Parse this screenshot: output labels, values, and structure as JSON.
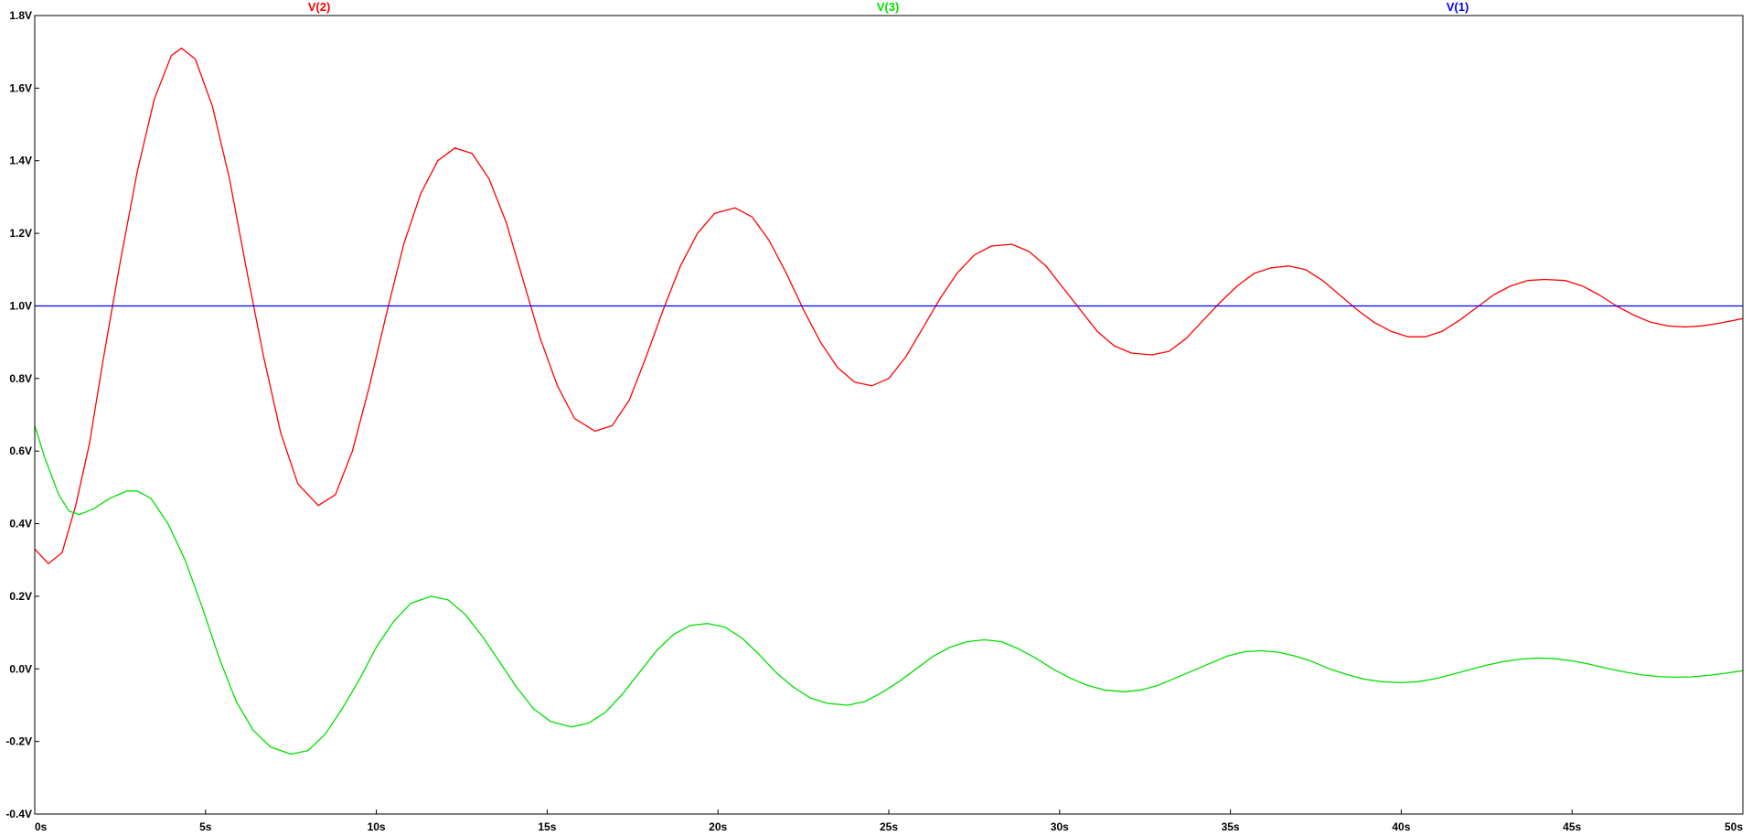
{
  "chart_data": {
    "type": "line",
    "title": "",
    "xlabel": "",
    "ylabel": "",
    "xlim": [
      0,
      50
    ],
    "ylim": [
      -0.4,
      1.8
    ],
    "grid": false,
    "legend_position": "top",
    "x_ticks": [
      {
        "value": 0,
        "label": "0s"
      },
      {
        "value": 5,
        "label": "5s"
      },
      {
        "value": 10,
        "label": "10s"
      },
      {
        "value": 15,
        "label": "15s"
      },
      {
        "value": 20,
        "label": "20s"
      },
      {
        "value": 25,
        "label": "25s"
      },
      {
        "value": 30,
        "label": "30s"
      },
      {
        "value": 35,
        "label": "35s"
      },
      {
        "value": 40,
        "label": "40s"
      },
      {
        "value": 45,
        "label": "45s"
      },
      {
        "value": 50,
        "label": "50s"
      }
    ],
    "y_ticks": [
      {
        "value": 1.8,
        "label": "1.8V"
      },
      {
        "value": 1.6,
        "label": "1.6V"
      },
      {
        "value": 1.4,
        "label": "1.4V"
      },
      {
        "value": 1.2,
        "label": "1.2V"
      },
      {
        "value": 1.0,
        "label": "1.0V"
      },
      {
        "value": 0.8,
        "label": "0.8V"
      },
      {
        "value": 0.6,
        "label": "0.6V"
      },
      {
        "value": 0.4,
        "label": "0.4V"
      },
      {
        "value": 0.2,
        "label": "0.2V"
      },
      {
        "value": 0.0,
        "label": "0.0V"
      },
      {
        "value": -0.2,
        "label": "-0.2V"
      },
      {
        "value": -0.4,
        "label": "-0.4V"
      }
    ],
    "series": [
      {
        "name": "V(2)",
        "color": "#ff0000",
        "points": [
          [
            0,
            0.33
          ],
          [
            0.4,
            0.29
          ],
          [
            0.8,
            0.32
          ],
          [
            1.2,
            0.45
          ],
          [
            1.6,
            0.62
          ],
          [
            2.0,
            0.85
          ],
          [
            2.5,
            1.12
          ],
          [
            3.0,
            1.37
          ],
          [
            3.5,
            1.57
          ],
          [
            4.0,
            1.69
          ],
          [
            4.3,
            1.71
          ],
          [
            4.7,
            1.68
          ],
          [
            5.2,
            1.55
          ],
          [
            5.7,
            1.35
          ],
          [
            6.2,
            1.1
          ],
          [
            6.7,
            0.86
          ],
          [
            7.2,
            0.65
          ],
          [
            7.7,
            0.51
          ],
          [
            8.3,
            0.45
          ],
          [
            8.8,
            0.48
          ],
          [
            9.3,
            0.6
          ],
          [
            9.8,
            0.78
          ],
          [
            10.3,
            0.98
          ],
          [
            10.8,
            1.17
          ],
          [
            11.3,
            1.31
          ],
          [
            11.8,
            1.4
          ],
          [
            12.3,
            1.435
          ],
          [
            12.8,
            1.42
          ],
          [
            13.3,
            1.35
          ],
          [
            13.8,
            1.23
          ],
          [
            14.3,
            1.07
          ],
          [
            14.8,
            0.91
          ],
          [
            15.3,
            0.78
          ],
          [
            15.8,
            0.69
          ],
          [
            16.4,
            0.655
          ],
          [
            16.9,
            0.67
          ],
          [
            17.4,
            0.74
          ],
          [
            17.9,
            0.86
          ],
          [
            18.4,
            0.99
          ],
          [
            18.9,
            1.11
          ],
          [
            19.4,
            1.2
          ],
          [
            19.9,
            1.255
          ],
          [
            20.5,
            1.27
          ],
          [
            21.0,
            1.245
          ],
          [
            21.5,
            1.18
          ],
          [
            22.0,
            1.09
          ],
          [
            22.5,
            0.99
          ],
          [
            23.0,
            0.9
          ],
          [
            23.5,
            0.83
          ],
          [
            24.0,
            0.79
          ],
          [
            24.5,
            0.78
          ],
          [
            25.0,
            0.8
          ],
          [
            25.5,
            0.86
          ],
          [
            26.0,
            0.94
          ],
          [
            26.5,
            1.02
          ],
          [
            27.0,
            1.09
          ],
          [
            27.5,
            1.14
          ],
          [
            28.0,
            1.165
          ],
          [
            28.6,
            1.17
          ],
          [
            29.1,
            1.15
          ],
          [
            29.6,
            1.11
          ],
          [
            30.1,
            1.05
          ],
          [
            30.6,
            0.99
          ],
          [
            31.1,
            0.93
          ],
          [
            31.6,
            0.89
          ],
          [
            32.1,
            0.87
          ],
          [
            32.7,
            0.865
          ],
          [
            33.2,
            0.875
          ],
          [
            33.7,
            0.91
          ],
          [
            34.2,
            0.96
          ],
          [
            34.7,
            1.01
          ],
          [
            35.2,
            1.055
          ],
          [
            35.7,
            1.09
          ],
          [
            36.2,
            1.105
          ],
          [
            36.7,
            1.11
          ],
          [
            37.2,
            1.1
          ],
          [
            37.7,
            1.07
          ],
          [
            38.2,
            1.03
          ],
          [
            38.7,
            0.99
          ],
          [
            39.2,
            0.955
          ],
          [
            39.7,
            0.93
          ],
          [
            40.2,
            0.915
          ],
          [
            40.7,
            0.915
          ],
          [
            41.2,
            0.93
          ],
          [
            41.7,
            0.96
          ],
          [
            42.2,
            0.995
          ],
          [
            42.7,
            1.03
          ],
          [
            43.2,
            1.055
          ],
          [
            43.7,
            1.07
          ],
          [
            44.2,
            1.073
          ],
          [
            44.8,
            1.07
          ],
          [
            45.3,
            1.055
          ],
          [
            45.8,
            1.03
          ],
          [
            46.3,
            1.0
          ],
          [
            46.8,
            0.975
          ],
          [
            47.3,
            0.955
          ],
          [
            47.8,
            0.945
          ],
          [
            48.3,
            0.942
          ],
          [
            48.8,
            0.945
          ],
          [
            49.3,
            0.952
          ],
          [
            50.0,
            0.965
          ]
        ]
      },
      {
        "name": "V(3)",
        "color": "#00e000",
        "points": [
          [
            0,
            0.67
          ],
          [
            0.3,
            0.58
          ],
          [
            0.7,
            0.48
          ],
          [
            1.0,
            0.435
          ],
          [
            1.3,
            0.425
          ],
          [
            1.7,
            0.44
          ],
          [
            2.2,
            0.47
          ],
          [
            2.7,
            0.49
          ],
          [
            3.0,
            0.49
          ],
          [
            3.4,
            0.47
          ],
          [
            3.9,
            0.4
          ],
          [
            4.4,
            0.3
          ],
          [
            4.9,
            0.17
          ],
          [
            5.4,
            0.03
          ],
          [
            5.9,
            -0.09
          ],
          [
            6.4,
            -0.17
          ],
          [
            6.9,
            -0.215
          ],
          [
            7.5,
            -0.235
          ],
          [
            8.0,
            -0.225
          ],
          [
            8.5,
            -0.18
          ],
          [
            9.0,
            -0.11
          ],
          [
            9.5,
            -0.03
          ],
          [
            10.0,
            0.06
          ],
          [
            10.5,
            0.13
          ],
          [
            11.0,
            0.18
          ],
          [
            11.6,
            0.2
          ],
          [
            12.1,
            0.19
          ],
          [
            12.6,
            0.15
          ],
          [
            13.1,
            0.09
          ],
          [
            13.6,
            0.02
          ],
          [
            14.1,
            -0.05
          ],
          [
            14.6,
            -0.11
          ],
          [
            15.1,
            -0.145
          ],
          [
            15.7,
            -0.16
          ],
          [
            16.2,
            -0.15
          ],
          [
            16.7,
            -0.12
          ],
          [
            17.2,
            -0.07
          ],
          [
            17.7,
            -0.01
          ],
          [
            18.2,
            0.05
          ],
          [
            18.7,
            0.095
          ],
          [
            19.2,
            0.12
          ],
          [
            19.7,
            0.125
          ],
          [
            20.2,
            0.115
          ],
          [
            20.7,
            0.085
          ],
          [
            21.2,
            0.04
          ],
          [
            21.7,
            -0.01
          ],
          [
            22.2,
            -0.05
          ],
          [
            22.7,
            -0.08
          ],
          [
            23.2,
            -0.095
          ],
          [
            23.8,
            -0.1
          ],
          [
            24.3,
            -0.09
          ],
          [
            24.8,
            -0.065
          ],
          [
            25.3,
            -0.035
          ],
          [
            25.8,
            0.0
          ],
          [
            26.3,
            0.035
          ],
          [
            26.8,
            0.06
          ],
          [
            27.3,
            0.075
          ],
          [
            27.8,
            0.08
          ],
          [
            28.3,
            0.075
          ],
          [
            28.8,
            0.055
          ],
          [
            29.3,
            0.03
          ],
          [
            29.8,
            0.0
          ],
          [
            30.3,
            -0.025
          ],
          [
            30.8,
            -0.045
          ],
          [
            31.3,
            -0.058
          ],
          [
            31.9,
            -0.063
          ],
          [
            32.4,
            -0.058
          ],
          [
            32.9,
            -0.045
          ],
          [
            33.4,
            -0.025
          ],
          [
            33.9,
            -0.005
          ],
          [
            34.4,
            0.015
          ],
          [
            34.9,
            0.035
          ],
          [
            35.4,
            0.047
          ],
          [
            35.9,
            0.05
          ],
          [
            36.4,
            0.046
          ],
          [
            36.9,
            0.035
          ],
          [
            37.4,
            0.02
          ],
          [
            37.9,
            0.0
          ],
          [
            38.4,
            -0.015
          ],
          [
            38.9,
            -0.028
          ],
          [
            39.4,
            -0.035
          ],
          [
            40.0,
            -0.038
          ],
          [
            40.5,
            -0.035
          ],
          [
            41.0,
            -0.027
          ],
          [
            41.5,
            -0.015
          ],
          [
            42.0,
            -0.002
          ],
          [
            42.5,
            0.01
          ],
          [
            43.0,
            0.02
          ],
          [
            43.5,
            0.027
          ],
          [
            44.0,
            0.03
          ],
          [
            44.5,
            0.028
          ],
          [
            45.0,
            0.022
          ],
          [
            45.5,
            0.013
          ],
          [
            46.0,
            0.002
          ],
          [
            46.5,
            -0.008
          ],
          [
            47.0,
            -0.016
          ],
          [
            47.5,
            -0.021
          ],
          [
            48.0,
            -0.023
          ],
          [
            48.5,
            -0.022
          ],
          [
            49.0,
            -0.018
          ],
          [
            49.5,
            -0.012
          ],
          [
            50.0,
            -0.005
          ]
        ]
      },
      {
        "name": "V(1)",
        "color": "#0000ff",
        "points": [
          [
            0,
            1.0
          ],
          [
            50,
            1.0
          ]
        ]
      }
    ]
  }
}
